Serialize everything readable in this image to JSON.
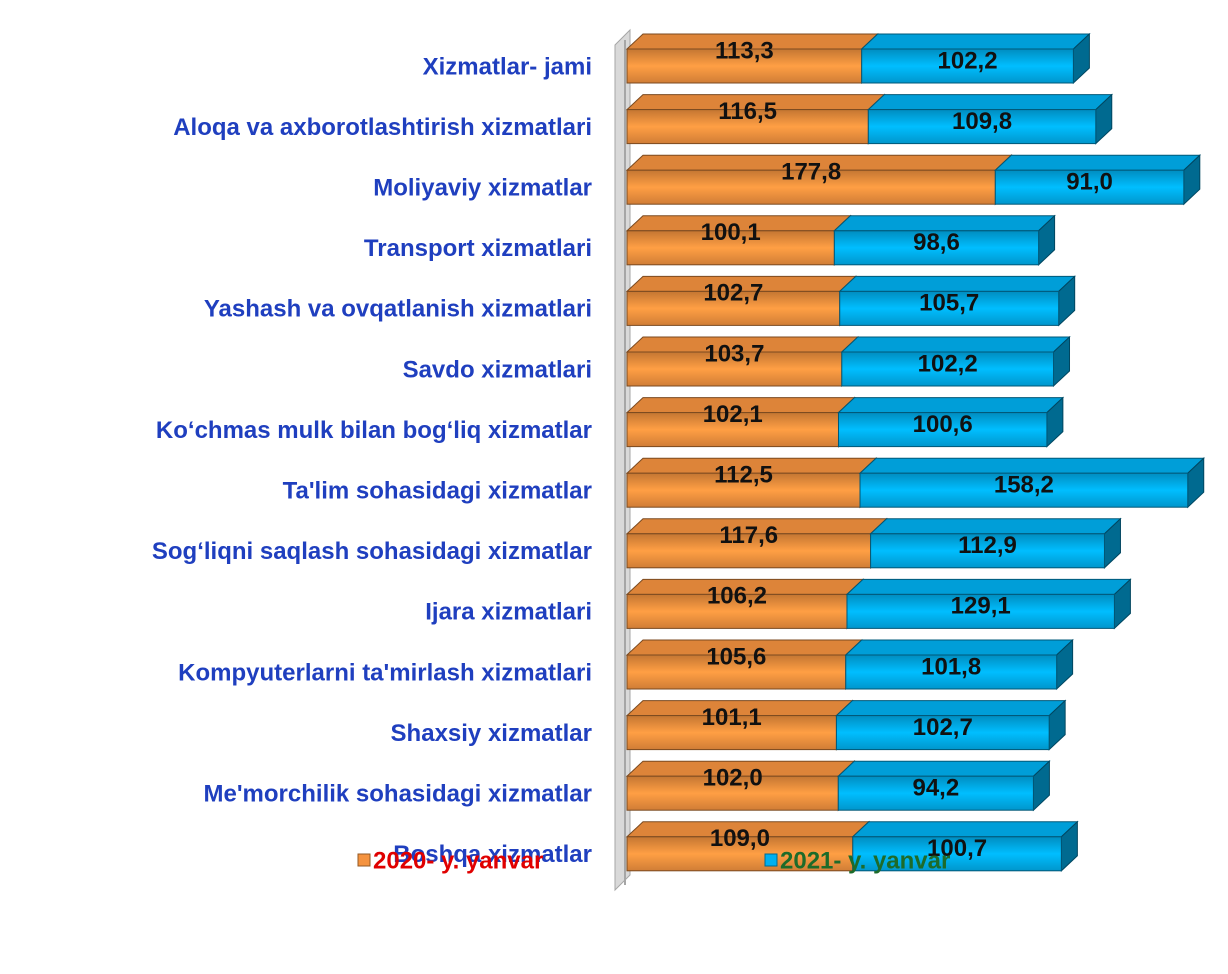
{
  "chart_data": {
    "type": "stacked-bar-horizontal",
    "categories": [
      "Xizmatlar- jami",
      "Aloqa va axborotlashtirish xizmatlari",
      "Moliyaviy xizmatlar",
      "Transport xizmatlari",
      "Yashash va ovqatlanish xizmatlari",
      "Savdo xizmatlari",
      "Ko‘chmas mulk bilan bog‘liq xizmatlar",
      "Ta'lim sohasidagi xizmatlar",
      "Sog‘liqni saqlash sohasidagi xizmatlar",
      "Ijara xizmatlari",
      "Kompyuterlarni ta'mirlash xizmatlari",
      "Shaxsiy xizmatlar",
      "Me'morchilik sohasidagi xizmatlar",
      "Boshqa xizmatlar"
    ],
    "series": [
      {
        "name": "2020- y. yanvar",
        "color": "#f5933f",
        "values": [
          113.3,
          116.5,
          177.8,
          100.1,
          102.7,
          103.7,
          102.1,
          112.5,
          117.6,
          106.2,
          105.6,
          101.1,
          102.0,
          109.0
        ],
        "value_labels": [
          "113,3",
          "116,5",
          "177,8",
          "100,1",
          "102,7",
          "103,7",
          "102,1",
          "112,5",
          "117,6",
          "106,2",
          "105,6",
          "101,1",
          "102,0",
          "109,0"
        ]
      },
      {
        "name": "2021- y. yanvar",
        "color": "#00b0f0",
        "values": [
          102.2,
          109.8,
          91.0,
          98.6,
          105.7,
          102.2,
          100.6,
          158.2,
          112.9,
          129.1,
          101.8,
          102.7,
          94.2,
          100.7
        ],
        "value_labels": [
          "102,2",
          "109,8",
          "91,0",
          "98,6",
          "105,7",
          "102,2",
          "100,6",
          "158,2",
          "112,9",
          "129,1",
          "101,8",
          "102,7",
          "94,2",
          "100,7"
        ]
      }
    ],
    "xlim": [
      0,
      280
    ]
  }
}
